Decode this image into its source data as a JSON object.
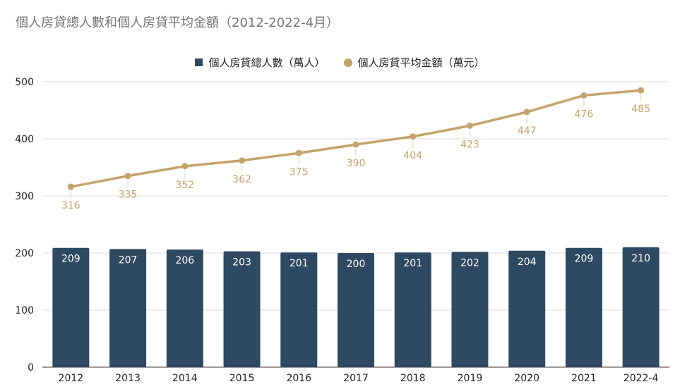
{
  "chart_data": {
    "type": "bar+line",
    "title": "個人房貸總人數和個人房貸平均金額（2012-2022-4月）",
    "categories": [
      "2012",
      "2013",
      "2014",
      "2015",
      "2016",
      "2017",
      "2018",
      "2019",
      "2020",
      "2021",
      "2022-4"
    ],
    "series": [
      {
        "name": "個人房貸總人數（萬人）",
        "type": "bar",
        "color": "#2e4a62",
        "values": [
          209,
          207,
          206,
          203,
          201,
          200,
          201,
          202,
          204,
          209,
          210
        ]
      },
      {
        "name": "個人房貸平均金額（萬元）",
        "type": "line",
        "color": "#c4a46a",
        "values": [
          316,
          335,
          352,
          362,
          375,
          390,
          404,
          423,
          447,
          476,
          485
        ]
      }
    ],
    "ylim": [
      0,
      500
    ],
    "yticks": [
      0,
      100,
      200,
      300,
      400,
      500
    ],
    "grid": true,
    "legend_position": "top"
  }
}
